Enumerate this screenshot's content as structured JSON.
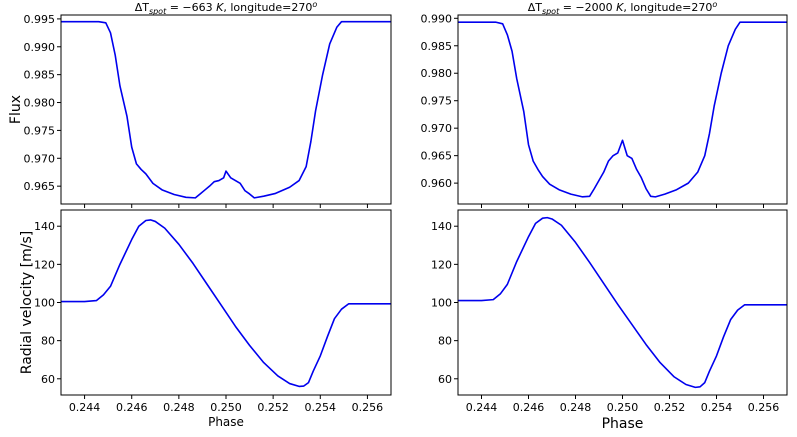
{
  "colors": {
    "line": "#0000ee",
    "axes": "#000000",
    "background": "#ffffff"
  },
  "chart_data": [
    {
      "panel": "top-left",
      "type": "line",
      "title": "ΔT_spot = −663 K, longitude=270°",
      "title_parts": {
        "delta": "ΔT",
        "sub": "spot",
        "eq": " = −663 ",
        "unit": "K",
        "rest": ", longitude=270",
        "sup": "o"
      },
      "xlabel": "",
      "ylabel": "Flux",
      "xlim": [
        0.243,
        0.257
      ],
      "ylim": [
        0.9618,
        0.9957
      ],
      "grid": false,
      "xticks": [
        0.244,
        0.246,
        0.248,
        0.25,
        0.252,
        0.254,
        0.256
      ],
      "xtick_labels": [],
      "yticks": [
        0.965,
        0.97,
        0.975,
        0.98,
        0.985,
        0.99,
        0.995
      ],
      "ytick_labels": [
        "0.965",
        "0.970",
        "0.975",
        "0.980",
        "0.985",
        "0.990",
        "0.995"
      ],
      "series": [
        {
          "x": [
            0.243,
            0.244,
            0.2446,
            0.2449,
            0.2451,
            0.2453,
            0.2455,
            0.2458,
            0.246,
            0.2462,
            0.2464,
            0.2466,
            0.2469,
            0.2473,
            0.2478,
            0.2483,
            0.2487,
            0.2489,
            0.2491,
            0.2493,
            0.2495,
            0.2497,
            0.2499,
            0.25,
            0.2502,
            0.2504,
            0.2506,
            0.2508,
            0.251,
            0.2512,
            0.2516,
            0.2521,
            0.2527,
            0.2531,
            0.2534,
            0.2536,
            0.2538,
            0.2541,
            0.2544,
            0.2547,
            0.2549,
            0.2551,
            0.2553,
            0.256,
            0.257
          ],
          "y": [
            0.9945,
            0.9945,
            0.9945,
            0.9943,
            0.9925,
            0.9885,
            0.983,
            0.9775,
            0.972,
            0.969,
            0.968,
            0.9672,
            0.9655,
            0.9643,
            0.9635,
            0.963,
            0.9629,
            0.9636,
            0.9643,
            0.965,
            0.9658,
            0.966,
            0.9665,
            0.9677,
            0.9665,
            0.966,
            0.9655,
            0.9642,
            0.9636,
            0.9629,
            0.9632,
            0.9637,
            0.9648,
            0.966,
            0.9685,
            0.973,
            0.9785,
            0.985,
            0.9905,
            0.9935,
            0.9945,
            0.9945,
            0.9945,
            0.9945,
            0.9945
          ]
        }
      ]
    },
    {
      "panel": "top-right",
      "type": "line",
      "title": "ΔT_spot = −2000 K, longitude=270°",
      "title_parts": {
        "delta": "ΔT",
        "sub": "spot",
        "eq": " = −2000 ",
        "unit": "K",
        "rest": ", longitude=270",
        "sup": "o"
      },
      "xlabel": "",
      "ylabel": "",
      "xlim": [
        0.243,
        0.257
      ],
      "ylim": [
        0.9562,
        0.9906
      ],
      "grid": false,
      "xticks": [
        0.244,
        0.246,
        0.248,
        0.25,
        0.252,
        0.254,
        0.256
      ],
      "xtick_labels": [],
      "yticks": [
        0.96,
        0.965,
        0.97,
        0.975,
        0.98,
        0.985,
        0.99
      ],
      "ytick_labels": [
        "0.960",
        "0.965",
        "0.970",
        "0.975",
        "0.980",
        "0.985",
        "0.990"
      ],
      "series": [
        {
          "x": [
            0.243,
            0.244,
            0.2446,
            0.2449,
            0.2451,
            0.2453,
            0.2455,
            0.2458,
            0.246,
            0.2462,
            0.2464,
            0.2466,
            0.2469,
            0.2473,
            0.2478,
            0.2483,
            0.2486,
            0.2488,
            0.249,
            0.2492,
            0.2494,
            0.2496,
            0.2498,
            0.25,
            0.2502,
            0.2504,
            0.2506,
            0.2508,
            0.251,
            0.2512,
            0.2514,
            0.2518,
            0.2523,
            0.2528,
            0.2532,
            0.2535,
            0.2537,
            0.2539,
            0.2542,
            0.2545,
            0.2548,
            0.255,
            0.2553,
            0.256,
            0.257
          ],
          "y": [
            0.9893,
            0.9893,
            0.9893,
            0.989,
            0.987,
            0.984,
            0.979,
            0.973,
            0.967,
            0.964,
            0.9625,
            0.9612,
            0.9598,
            0.9588,
            0.958,
            0.9575,
            0.9576,
            0.959,
            0.9605,
            0.962,
            0.964,
            0.965,
            0.9655,
            0.9678,
            0.965,
            0.9645,
            0.9625,
            0.961,
            0.959,
            0.9576,
            0.9575,
            0.958,
            0.9588,
            0.96,
            0.962,
            0.965,
            0.969,
            0.974,
            0.98,
            0.985,
            0.988,
            0.9893,
            0.9893,
            0.9893,
            0.9893
          ]
        }
      ]
    },
    {
      "panel": "bottom-left",
      "type": "line",
      "title": "",
      "xlabel": "Phase",
      "ylabel": "Radial velocity [m/s]",
      "xlim": [
        0.243,
        0.257
      ],
      "ylim": [
        51.5,
        148.5
      ],
      "grid": false,
      "xticks": [
        0.244,
        0.246,
        0.248,
        0.25,
        0.252,
        0.254,
        0.256
      ],
      "xtick_labels": [
        "0.244",
        "0.246",
        "0.248",
        "0.250",
        "0.252",
        "0.254",
        "0.256"
      ],
      "yticks": [
        60,
        80,
        100,
        120,
        140
      ],
      "ytick_labels": [
        "60",
        "80",
        "100",
        "120",
        "140"
      ],
      "series": [
        {
          "x": [
            0.243,
            0.244,
            0.2445,
            0.2448,
            0.2451,
            0.2455,
            0.246,
            0.2463,
            0.2466,
            0.2468,
            0.247,
            0.2474,
            0.248,
            0.2486,
            0.2492,
            0.2498,
            0.2504,
            0.251,
            0.2516,
            0.2522,
            0.2527,
            0.2531,
            0.2533,
            0.2535,
            0.2537,
            0.254,
            0.2543,
            0.2546,
            0.2549,
            0.2552,
            0.256,
            0.257
          ],
          "y": [
            100.5,
            100.5,
            101.0,
            104.0,
            108.5,
            120.0,
            133.0,
            140.0,
            143.0,
            143.3,
            142.5,
            139.0,
            130.5,
            120.5,
            109.5,
            98.5,
            87.5,
            77.5,
            68.5,
            61.5,
            57.5,
            56.0,
            56.2,
            58.0,
            64.0,
            72.0,
            82.0,
            91.5,
            96.5,
            99.3,
            99.3,
            99.3
          ]
        }
      ]
    },
    {
      "panel": "bottom-right",
      "type": "line",
      "title": "",
      "xlabel": "Phase",
      "ylabel": "",
      "xlim": [
        0.243,
        0.257
      ],
      "ylim": [
        51.5,
        148.5
      ],
      "grid": false,
      "xticks": [
        0.244,
        0.246,
        0.248,
        0.25,
        0.252,
        0.254,
        0.256
      ],
      "xtick_labels": [
        "0.244",
        "0.246",
        "0.248",
        "0.250",
        "0.252",
        "0.254",
        "0.256"
      ],
      "yticks": [
        60,
        80,
        100,
        120,
        140
      ],
      "ytick_labels": [
        "60",
        "80",
        "100",
        "120",
        "140"
      ],
      "series": [
        {
          "x": [
            0.243,
            0.244,
            0.2445,
            0.2448,
            0.2451,
            0.2455,
            0.246,
            0.2463,
            0.2466,
            0.2468,
            0.247,
            0.2474,
            0.248,
            0.2486,
            0.2492,
            0.2498,
            0.2504,
            0.251,
            0.2516,
            0.2522,
            0.2527,
            0.2531,
            0.2533,
            0.2535,
            0.2537,
            0.254,
            0.2543,
            0.2546,
            0.2549,
            0.2552,
            0.256,
            0.257
          ],
          "y": [
            101.0,
            101.0,
            101.5,
            104.5,
            109.5,
            121.5,
            134.5,
            141.5,
            144.2,
            144.5,
            143.8,
            140.5,
            131.5,
            121.0,
            110.0,
            99.0,
            88.5,
            78.0,
            68.5,
            61.0,
            57.0,
            55.5,
            55.8,
            58.0,
            64.0,
            72.0,
            82.0,
            91.0,
            96.0,
            98.8,
            98.8,
            98.8
          ]
        }
      ]
    }
  ]
}
